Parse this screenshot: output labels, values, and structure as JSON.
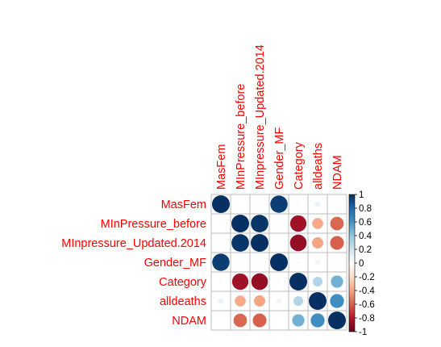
{
  "chart_data": {
    "type": "heatmap",
    "title": "",
    "variables": [
      "MasFem",
      "MInPressure_before",
      "MInpressure_Updated.2014",
      "Gender_MF",
      "Category",
      "alldeaths",
      "NDAM"
    ],
    "matrix": [
      [
        1.0,
        0.0,
        0.0,
        0.95,
        0.03,
        0.1,
        0.01
      ],
      [
        0.0,
        1.0,
        0.98,
        0.0,
        -0.85,
        -0.38,
        -0.58
      ],
      [
        0.0,
        0.98,
        1.0,
        0.02,
        -0.88,
        -0.4,
        -0.6
      ],
      [
        0.95,
        0.0,
        0.02,
        1.0,
        0.04,
        0.08,
        0.0
      ],
      [
        0.03,
        -0.85,
        -0.88,
        0.04,
        1.0,
        0.3,
        0.48
      ],
      [
        0.1,
        -0.38,
        -0.4,
        0.08,
        0.3,
        1.0,
        0.62
      ],
      [
        0.01,
        -0.58,
        -0.6,
        0.0,
        0.48,
        0.62,
        1.0
      ]
    ],
    "legend_ticks": [
      "1",
      "0.8",
      "0.6",
      "0.4",
      "0.2",
      "0",
      "-0.2",
      "-0.4",
      "-0.6",
      "-0.8",
      "-1"
    ],
    "value_range": [
      -1,
      1
    ],
    "color_scale": [
      "#67001F",
      "#B2182B",
      "#D6604D",
      "#F4A582",
      "#FDDBC7",
      "#FFFFFF",
      "#D1E5F0",
      "#92C5DE",
      "#4393C3",
      "#2166AC",
      "#053061"
    ],
    "label_color": "#FF0000",
    "grid_color": "#BEBEBE",
    "legend_placement": "right"
  }
}
